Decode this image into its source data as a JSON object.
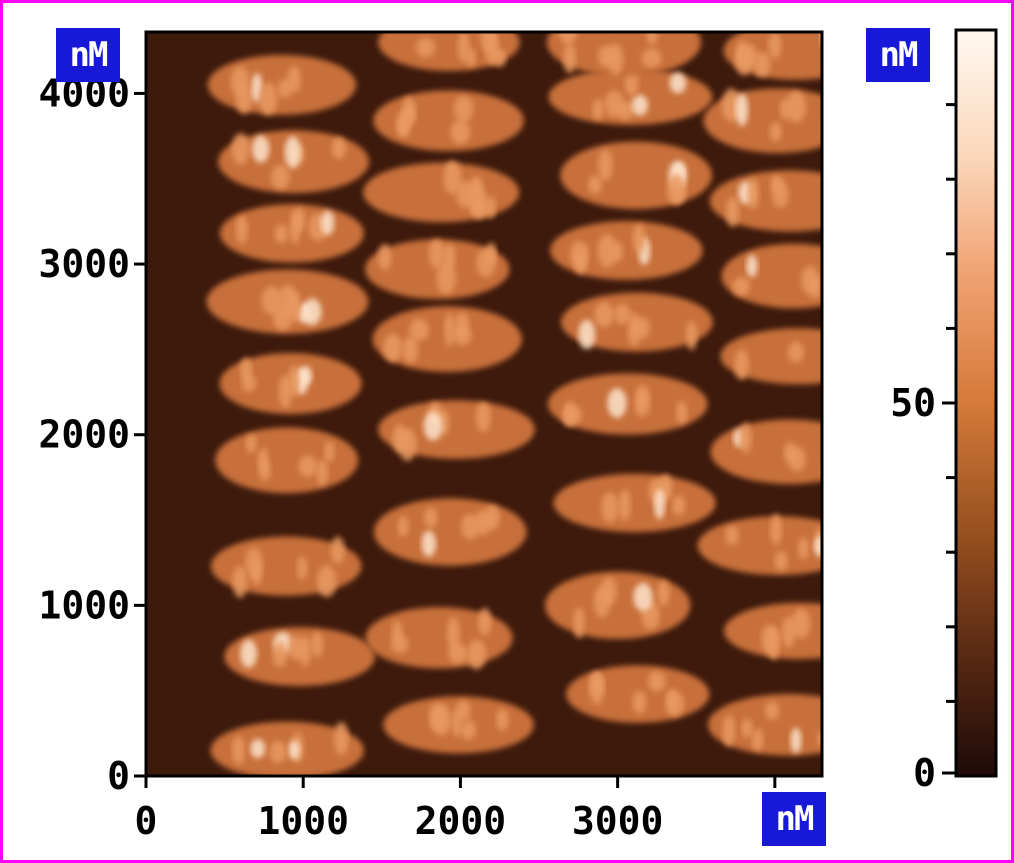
{
  "chart_data": {
    "type": "heatmap",
    "description_units": "nM",
    "x_unit": "nM",
    "y_unit": "nM",
    "colorbar_unit": "nM",
    "xlim": [
      0,
      4300
    ],
    "ylim": [
      0,
      4360
    ],
    "x_ticks": [
      0,
      1000,
      2000,
      3000
    ],
    "x_minor_ticks": [
      4000
    ],
    "y_ticks": [
      0,
      1000,
      2000,
      3000,
      4000
    ],
    "colorbar": {
      "range": [
        0,
        100
      ],
      "ticks": [
        0,
        50
      ],
      "minor_ticks": [
        10,
        20,
        30,
        40,
        60,
        70,
        80,
        90
      ],
      "colors": [
        "#1e0a08",
        "#5a2a14",
        "#9a5220",
        "#d47a3a",
        "#f0a070",
        "#fbd8bc",
        "#fff8f0"
      ]
    },
    "background_color": "#3d1a0c",
    "columns": [
      {
        "center_x": 1000,
        "blobs_y": [
          150,
          700,
          1230,
          1850,
          2300,
          2780,
          3180,
          3600,
          4050
        ]
      },
      {
        "center_x": 2150,
        "blobs_y": [
          300,
          810,
          1430,
          2030,
          2560,
          2970,
          3420,
          3840,
          4300
        ]
      },
      {
        "center_x": 3300,
        "blobs_y": [
          480,
          1000,
          1600,
          2180,
          2660,
          3080,
          3520,
          3980,
          4300
        ]
      },
      {
        "center_x": 4300,
        "blobs_y": [
          300,
          850,
          1350,
          1900,
          2460,
          2930,
          3370,
          3840,
          4250
        ]
      }
    ],
    "legend_position": "right"
  }
}
